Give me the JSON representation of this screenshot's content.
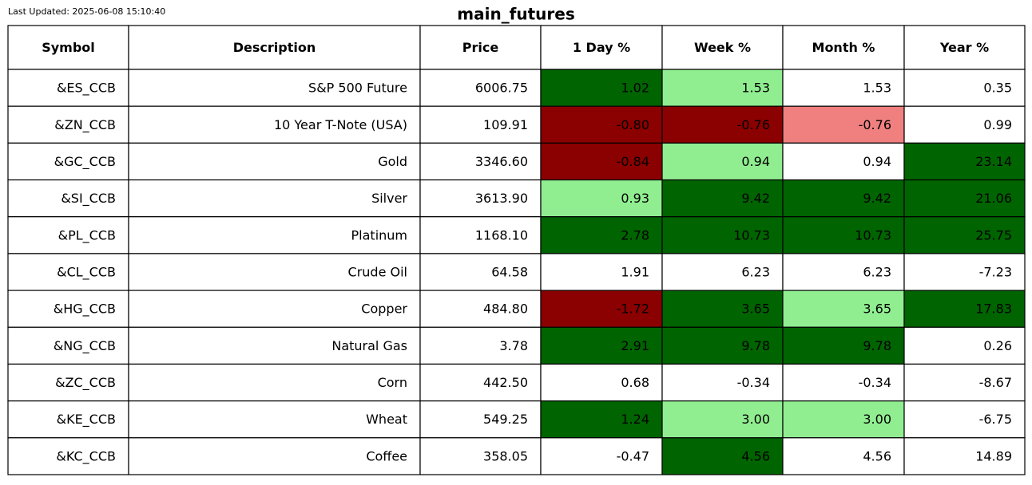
{
  "header": {
    "last_updated": "Last Updated: 2025-06-08 15:10:40",
    "title": "main_futures"
  },
  "table": {
    "columns": [
      "Symbol",
      "Description",
      "Price",
      "1 Day %",
      "Week %",
      "Month %",
      "Year %"
    ],
    "rows": [
      [
        "&ES_CCB",
        "S&P 500 Future",
        "6006.75",
        "1.02",
        "1.53",
        "1.53",
        "0.35"
      ],
      [
        "&ZN_CCB",
        "10 Year T-Note (USA)",
        "109.91",
        "-0.80",
        "-0.76",
        "-0.76",
        "0.99"
      ],
      [
        "&GC_CCB",
        "Gold",
        "3346.60",
        "-0.84",
        "0.94",
        "0.94",
        "23.14"
      ],
      [
        "&SI_CCB",
        "Silver",
        "3613.90",
        "0.93",
        "9.42",
        "9.42",
        "21.06"
      ],
      [
        "&PL_CCB",
        "Platinum",
        "1168.10",
        "2.78",
        "10.73",
        "10.73",
        "25.75"
      ],
      [
        "&CL_CCB",
        "Crude Oil",
        "64.58",
        "1.91",
        "6.23",
        "6.23",
        "-7.23"
      ],
      [
        "&HG_CCB",
        "Copper",
        "484.80",
        "-1.72",
        "3.65",
        "3.65",
        "17.83"
      ],
      [
        "&NG_CCB",
        "Natural Gas",
        "3.78",
        "2.91",
        "9.78",
        "9.78",
        "0.26"
      ],
      [
        "&ZC_CCB",
        "Corn",
        "442.50",
        "0.68",
        "-0.34",
        "-0.34",
        "-8.67"
      ],
      [
        "&KE_CCB",
        "Wheat",
        "549.25",
        "1.24",
        "3.00",
        "3.00",
        "-6.75"
      ],
      [
        "&KC_CCB",
        "Coffee",
        "358.05",
        "-0.47",
        "4.56",
        "4.56",
        "14.89"
      ]
    ],
    "pct_cell_colors": [
      [
        "#006400",
        "#90ee90",
        "#ffffff",
        "#ffffff"
      ],
      [
        "#8b0000",
        "#8b0000",
        "#f08080",
        "#ffffff"
      ],
      [
        "#8b0000",
        "#90ee90",
        "#ffffff",
        "#006400"
      ],
      [
        "#90ee90",
        "#006400",
        "#006400",
        "#006400"
      ],
      [
        "#006400",
        "#006400",
        "#006400",
        "#006400"
      ],
      [
        "#ffffff",
        "#ffffff",
        "#ffffff",
        "#ffffff"
      ],
      [
        "#8b0000",
        "#006400",
        "#90ee90",
        "#006400"
      ],
      [
        "#006400",
        "#006400",
        "#006400",
        "#ffffff"
      ],
      [
        "#ffffff",
        "#ffffff",
        "#ffffff",
        "#ffffff"
      ],
      [
        "#006400",
        "#90ee90",
        "#90ee90",
        "#ffffff"
      ],
      [
        "#ffffff",
        "#006400",
        "#ffffff",
        "#ffffff"
      ]
    ]
  }
}
